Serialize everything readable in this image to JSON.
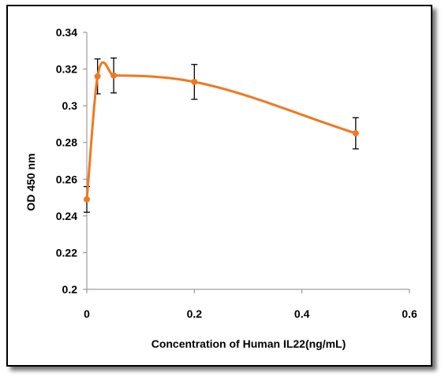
{
  "chart_data": {
    "type": "line",
    "title": "",
    "xlabel": "Concentration of Human IL22(ng/mL)",
    "ylabel": "OD  450 nm",
    "xlim": [
      0,
      0.6
    ],
    "ylim": [
      0.2,
      0.34
    ],
    "x_ticks": [
      "0",
      "0.2",
      "0.4",
      "0.6"
    ],
    "y_ticks": [
      "0.2",
      "0.22",
      "0.24",
      "0.26",
      "0.28",
      "0.3",
      "0.32",
      "0.34"
    ],
    "grid": false,
    "legend": "none",
    "series": [
      {
        "color": "#f07820",
        "smooth": true,
        "points": [
          {
            "x": 0,
            "y": 0.249,
            "err": 0.007
          },
          {
            "x": 0.02,
            "y": 0.316,
            "err": 0.0095
          },
          {
            "x": 0.05,
            "y": 0.3165,
            "err": 0.0095
          },
          {
            "x": 0.2,
            "y": 0.313,
            "err": 0.0095
          },
          {
            "x": 0.5,
            "y": 0.285,
            "err": 0.0085
          }
        ]
      }
    ]
  }
}
